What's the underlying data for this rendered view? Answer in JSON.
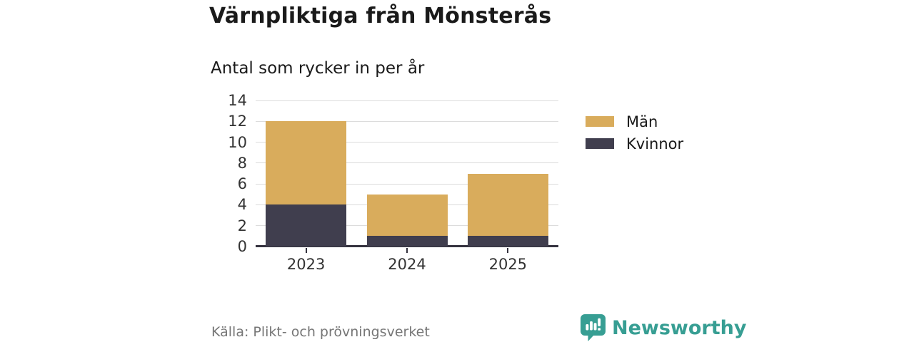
{
  "header": {
    "title": "Värnpliktiga från Mönsterås",
    "subtitle": "Antal som rycker in per år"
  },
  "chart_data": {
    "type": "bar",
    "stacked": true,
    "title": "Värnpliktiga från Mönsterås",
    "subtitle": "Antal som rycker in per år",
    "categories": [
      "2023",
      "2024",
      "2025"
    ],
    "series": [
      {
        "name": "Män",
        "values": [
          8,
          4,
          6
        ],
        "color": "#d9ac5c"
      },
      {
        "name": "Kvinnor",
        "values": [
          4,
          1,
          1
        ],
        "color": "#403e4e"
      }
    ],
    "stack_order_bottom_to_top": [
      "Kvinnor",
      "Män"
    ],
    "totals": [
      12,
      5,
      7
    ],
    "xlabel": "",
    "ylabel": "",
    "ylim": [
      0,
      14
    ],
    "yticks": [
      0,
      2,
      4,
      6,
      8,
      10,
      12,
      14
    ],
    "grid": "horizontal",
    "legend_position": "right"
  },
  "legend": {
    "items": [
      {
        "label": "Män",
        "color": "#d9ac5c"
      },
      {
        "label": "Kvinnor",
        "color": "#403e4e"
      }
    ]
  },
  "footer": {
    "source": "Källa: Plikt- och prövningsverket",
    "brand": "Newsworthy"
  },
  "colors": {
    "men": "#d9ac5c",
    "women": "#403e4e",
    "brand_teal": "#379e93",
    "gridline": "#dcdcdc",
    "axis": "#35333f",
    "text": "#1a1a1a",
    "axis_text": "#333333",
    "muted_text": "#767676"
  }
}
